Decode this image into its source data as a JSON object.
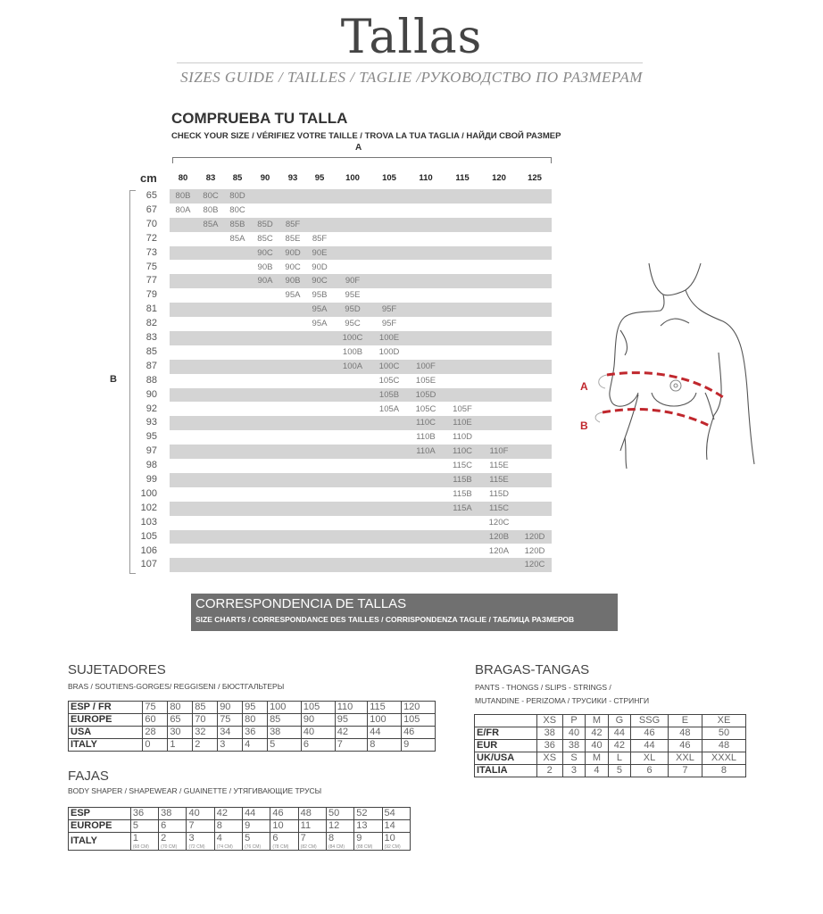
{
  "header": {
    "title": "Tallas",
    "subtitle": "SIZES GUIDE / TAILLES / TAGLIE /РУКОВОДСТВО ПО РАЗМЕРАМ"
  },
  "check_size": {
    "title": "COMPRUEBA TU TALLA",
    "subtitle": "CHECK YOUR SIZE / VÉRIFIEZ VOTRE TAILLE / TROVA LA TUA TAGLIA / НАЙДИ СВОЙ РАЗМЕР",
    "axis_a_label": "A",
    "axis_b_label": "B",
    "unit_label": "cm",
    "columns": [
      "80",
      "83",
      "85",
      "90",
      "93",
      "95",
      "100",
      "105",
      "110",
      "115",
      "120",
      "125"
    ],
    "rows": [
      {
        "cm": "65",
        "cells": [
          "80B",
          "80C",
          "80D",
          "",
          "",
          "",
          "",
          "",
          "",
          "",
          "",
          ""
        ]
      },
      {
        "cm": "67",
        "cells": [
          "80A",
          "80B",
          "80C",
          "",
          "",
          "",
          "",
          "",
          "",
          "",
          "",
          ""
        ]
      },
      {
        "cm": "70",
        "cells": [
          "",
          "85A",
          "85B",
          "85D",
          "85F",
          "",
          "",
          "",
          "",
          "",
          "",
          ""
        ]
      },
      {
        "cm": "72",
        "cells": [
          "",
          "",
          "85A",
          "85C",
          "85E",
          "85F",
          "",
          "",
          "",
          "",
          "",
          ""
        ]
      },
      {
        "cm": "73",
        "cells": [
          "",
          "",
          "",
          "90C",
          "90D",
          "90E",
          "",
          "",
          "",
          "",
          "",
          ""
        ]
      },
      {
        "cm": "75",
        "cells": [
          "",
          "",
          "",
          "90B",
          "90C",
          "90D",
          "",
          "",
          "",
          "",
          "",
          ""
        ]
      },
      {
        "cm": "77",
        "cells": [
          "",
          "",
          "",
          "90A",
          "90B",
          "90C",
          "90F",
          "",
          "",
          "",
          "",
          ""
        ]
      },
      {
        "cm": "79",
        "cells": [
          "",
          "",
          "",
          "",
          "95A",
          "95B",
          "95E",
          "",
          "",
          "",
          "",
          ""
        ]
      },
      {
        "cm": "81",
        "cells": [
          "",
          "",
          "",
          "",
          "",
          "95A",
          "95D",
          "95F",
          "",
          "",
          "",
          ""
        ]
      },
      {
        "cm": "82",
        "cells": [
          "",
          "",
          "",
          "",
          "",
          "95A",
          "95C",
          "95F",
          "",
          "",
          "",
          ""
        ]
      },
      {
        "cm": "83",
        "cells": [
          "",
          "",
          "",
          "",
          "",
          "",
          "100C",
          "100E",
          "",
          "",
          "",
          ""
        ]
      },
      {
        "cm": "85",
        "cells": [
          "",
          "",
          "",
          "",
          "",
          "",
          "100B",
          "100D",
          "",
          "",
          "",
          ""
        ]
      },
      {
        "cm": "87",
        "cells": [
          "",
          "",
          "",
          "",
          "",
          "",
          "100A",
          "100C",
          "100F",
          "",
          "",
          ""
        ]
      },
      {
        "cm": "88",
        "cells": [
          "",
          "",
          "",
          "",
          "",
          "",
          "",
          "105C",
          "105E",
          "",
          "",
          ""
        ]
      },
      {
        "cm": "90",
        "cells": [
          "",
          "",
          "",
          "",
          "",
          "",
          "",
          "105B",
          "105D",
          "",
          "",
          ""
        ]
      },
      {
        "cm": "92",
        "cells": [
          "",
          "",
          "",
          "",
          "",
          "",
          "",
          "105A",
          "105C",
          "105F",
          "",
          ""
        ]
      },
      {
        "cm": "93",
        "cells": [
          "",
          "",
          "",
          "",
          "",
          "",
          "",
          "",
          "110C",
          "110E",
          "",
          ""
        ]
      },
      {
        "cm": "95",
        "cells": [
          "",
          "",
          "",
          "",
          "",
          "",
          "",
          "",
          "110B",
          "110D",
          "",
          ""
        ]
      },
      {
        "cm": "97",
        "cells": [
          "",
          "",
          "",
          "",
          "",
          "",
          "",
          "",
          "110A",
          "110C",
          "110F",
          ""
        ]
      },
      {
        "cm": "98",
        "cells": [
          "",
          "",
          "",
          "",
          "",
          "",
          "",
          "",
          "",
          "115C",
          "115E",
          ""
        ]
      },
      {
        "cm": "99",
        "cells": [
          "",
          "",
          "",
          "",
          "",
          "",
          "",
          "",
          "",
          "115B",
          "115E",
          ""
        ]
      },
      {
        "cm": "100",
        "cells": [
          "",
          "",
          "",
          "",
          "",
          "",
          "",
          "",
          "",
          "115B",
          "115D",
          ""
        ]
      },
      {
        "cm": "102",
        "cells": [
          "",
          "",
          "",
          "",
          "",
          "",
          "",
          "",
          "",
          "115A",
          "115C",
          ""
        ]
      },
      {
        "cm": "103",
        "cells": [
          "",
          "",
          "",
          "",
          "",
          "",
          "",
          "",
          "",
          "",
          "120C",
          ""
        ]
      },
      {
        "cm": "105",
        "cells": [
          "",
          "",
          "",
          "",
          "",
          "",
          "",
          "",
          "",
          "",
          "120B",
          "120D"
        ]
      },
      {
        "cm": "106",
        "cells": [
          "",
          "",
          "",
          "",
          "",
          "",
          "",
          "",
          "",
          "",
          "120A",
          "120D"
        ]
      },
      {
        "cm": "107",
        "cells": [
          "",
          "",
          "",
          "",
          "",
          "",
          "",
          "",
          "",
          "",
          "",
          "120C"
        ]
      }
    ]
  },
  "illustration": {
    "label_a": "A",
    "label_b": "B",
    "accent_color": "#c0272d"
  },
  "correspondence": {
    "title": "CORRESPONDENCIA DE TALLAS",
    "subtitle": "SIZE CHARTS / CORRESPONDANCE DES TAILLES / CORRISPONDENZA TAGLIE / ТАБЛИЦА РАЗМЕРОВ"
  },
  "bras": {
    "title": "SUJETADORES",
    "subtitle": "BRAS / SOUTIENS-GORGES/ REGGISENI / БЮСТГАЛЬТЕРЫ",
    "rows": [
      [
        "ESP / FR",
        "75",
        "80",
        "85",
        "90",
        "95",
        "100",
        "105",
        "110",
        "115",
        "120"
      ],
      [
        "EUROPE",
        "60",
        "65",
        "70",
        "75",
        "80",
        "85",
        "90",
        "95",
        "100",
        "105"
      ],
      [
        "USA",
        "28",
        "30",
        "32",
        "34",
        "36",
        "38",
        "40",
        "42",
        "44",
        "46"
      ],
      [
        "ITALY",
        "0",
        "1",
        "2",
        "3",
        "4",
        "5",
        "6",
        "7",
        "8",
        "9"
      ]
    ]
  },
  "shapewear": {
    "title": "FAJAS",
    "subtitle": "BODY SHAPER / SHAPEWEAR / GUAINETTE / УТЯГИВАЮЩИЕ ТРУСЫ",
    "rows": [
      [
        "ESP",
        "36",
        "38",
        "40",
        "42",
        "44",
        "46",
        "48",
        "50",
        "52",
        "54"
      ],
      [
        "EUROPE",
        "5",
        "6",
        "7",
        "8",
        "9",
        "10",
        "11",
        "12",
        "13",
        "14"
      ],
      [
        "ITALY",
        "1",
        "2",
        "3",
        "4",
        "5",
        "6",
        "7",
        "8",
        "9",
        "10"
      ]
    ],
    "italy_notes": [
      "(68 CM)",
      "(70 CM)",
      "(72 CM)",
      "(74 CM)",
      "(76 CM)",
      "(78 CM)",
      "(82 CM)",
      "(84 CM)",
      "(88 CM)",
      "(92 CM)"
    ]
  },
  "pants": {
    "title": "BRAGAS-TANGAS",
    "subtitle_1": "PANTS - THONGS / SLIPS - STRINGS /",
    "subtitle_2": "MUTANDINE - PERIZOMA / ТРУСИКИ - СТРИНГИ",
    "rows": [
      [
        "",
        "XS",
        "P",
        "M",
        "G",
        "SSG",
        "E",
        "XE"
      ],
      [
        "E/FR",
        "38",
        "40",
        "42",
        "44",
        "46",
        "48",
        "50"
      ],
      [
        "EUR",
        "36",
        "38",
        "40",
        "42",
        "44",
        "46",
        "48"
      ],
      [
        "UK/USA",
        "XS",
        "S",
        "M",
        "L",
        "XL",
        "XXL",
        "XXXL"
      ],
      [
        "ITALIA",
        "2",
        "3",
        "4",
        "5",
        "6",
        "7",
        "8"
      ]
    ]
  }
}
